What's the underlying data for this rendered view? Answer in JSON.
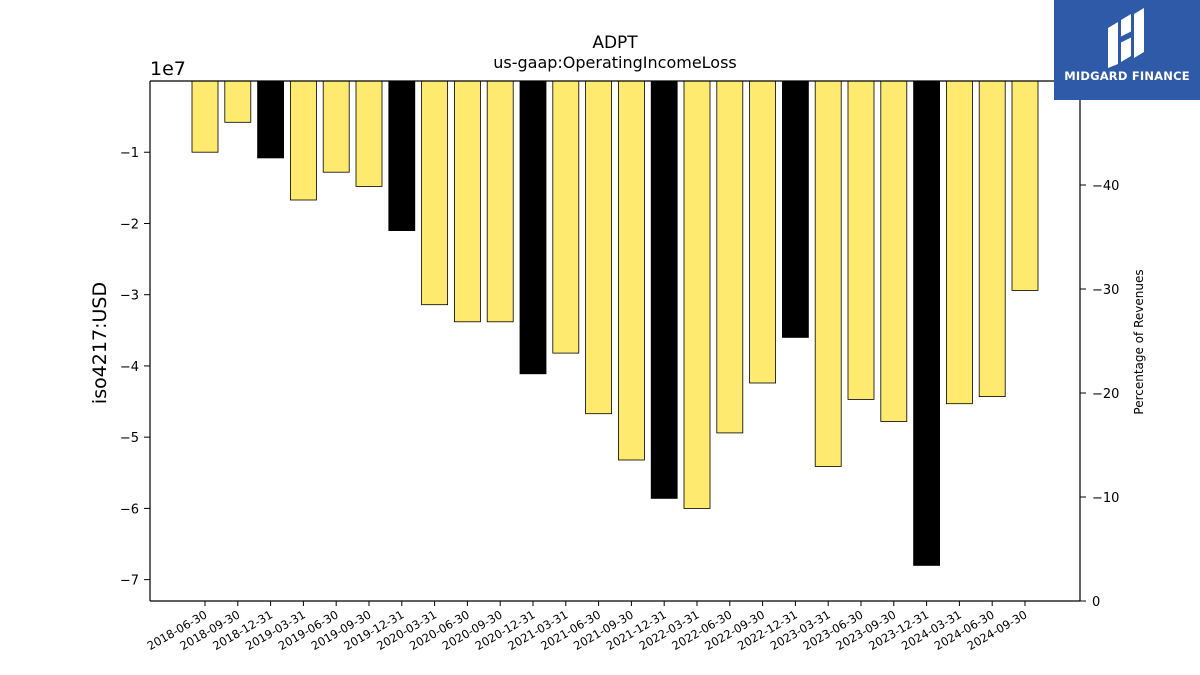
{
  "chart_data": {
    "type": "bar",
    "title": "ADPT",
    "subtitle": "us-gaap:OperatingIncomeLoss",
    "ylabel": "iso4217:USD",
    "y_offset_text": "1e7",
    "y2label": "Percentage of Revenues",
    "ylim": [
      -73000000,
      0
    ],
    "y2lim": [
      0,
      50
    ],
    "yticks": [
      -1,
      -2,
      -3,
      -4,
      -5,
      -6,
      -7
    ],
    "yticks_scale": 10000000,
    "y2ticks": [
      0,
      -10,
      -20,
      -30,
      -40
    ],
    "categories": [
      "2018-06-30",
      "2018-09-30",
      "2018-12-31",
      "2019-03-31",
      "2019-06-30",
      "2019-09-30",
      "2019-12-31",
      "2020-03-31",
      "2020-06-30",
      "2020-09-30",
      "2020-12-31",
      "2021-03-31",
      "2021-06-30",
      "2021-09-30",
      "2021-12-31",
      "2022-03-31",
      "2022-06-30",
      "2022-09-30",
      "2022-12-31",
      "2023-03-31",
      "2023-06-30",
      "2023-09-30",
      "2023-12-31",
      "2024-03-31",
      "2024-06-30",
      "2024-09-30"
    ],
    "values": [
      -10000000,
      -5800000,
      -10800000,
      -16700000,
      -12800000,
      -14800000,
      -21000000,
      -31400000,
      -33800000,
      -33800000,
      -41100000,
      -38200000,
      -46700000,
      -53200000,
      -58600000,
      -60000000,
      -49400000,
      -42400000,
      -36000000,
      -54100000,
      -44700000,
      -47800000,
      -68000000,
      -45300000,
      -44300000,
      -29400000
    ],
    "period_type": [
      "quarter",
      "quarter",
      "annual",
      "quarter",
      "quarter",
      "quarter",
      "annual",
      "quarter",
      "quarter",
      "quarter",
      "annual",
      "quarter",
      "quarter",
      "quarter",
      "annual",
      "quarter",
      "quarter",
      "quarter",
      "annual",
      "quarter",
      "quarter",
      "quarter",
      "annual",
      "quarter",
      "quarter",
      "quarter"
    ],
    "colors": {
      "quarter": "#fdea6f",
      "annual": "#000000",
      "edge": "#000000",
      "axis": "#000000"
    },
    "grid": false,
    "legend": "none"
  },
  "logo": {
    "text": "MIDGARD FINANCE",
    "background": "#2f5aa8",
    "icon": "midgard-logo-icon"
  }
}
